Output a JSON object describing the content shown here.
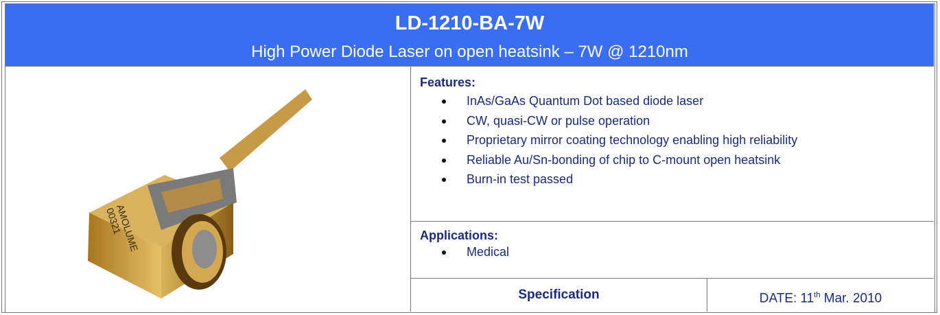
{
  "header": {
    "title": "LD-1210-BA-7W",
    "subtitle": "High Power Diode Laser on open heatsink – 7W @ 1210nm"
  },
  "image": {
    "marking": [
      "AMOLUME",
      "00321"
    ]
  },
  "features": {
    "heading": "Features:",
    "items": [
      "InAs/GaAs Quantum Dot based diode laser",
      "CW, quasi-CW or pulse operation",
      "Proprietary mirror coating technology enabling high reliability",
      "Reliable Au/Sn-bonding of chip to C-mount open heatsink",
      "Burn-in test passed"
    ]
  },
  "applications": {
    "heading": "Applications:",
    "items": [
      "Medical"
    ]
  },
  "footer": {
    "specification": "Specification",
    "date": {
      "prefix": "DATE: 11",
      "sup": "th",
      "suffix": " Mar. 2010"
    }
  }
}
